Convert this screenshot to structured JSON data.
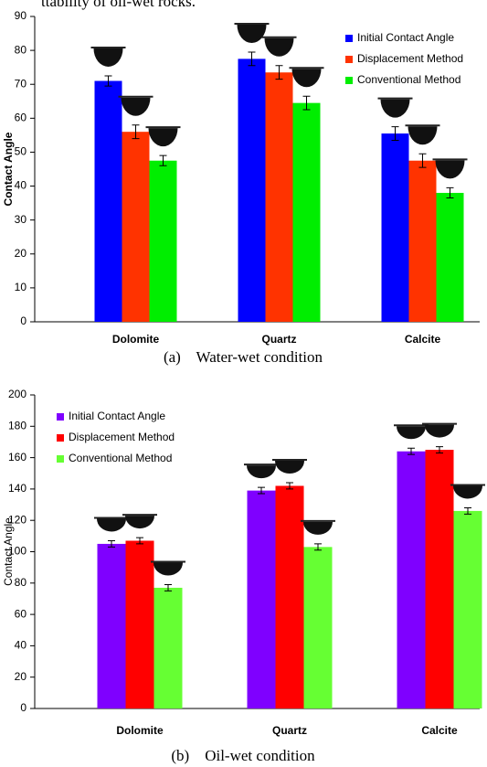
{
  "context_text": "ttability of oil-wet rocks.",
  "chart_data": [
    {
      "type": "bar",
      "caption": "(a)    Water-wet condition",
      "y_label": "Contact Angle",
      "categories": [
        "Dolomite",
        "Quartz",
        "Calcite"
      ],
      "series": [
        {
          "name": "Initial Contact Angle",
          "color": "#0000ff",
          "values": [
            71,
            77.5,
            55.5
          ],
          "errors": [
            1.5,
            2,
            2
          ]
        },
        {
          "name": "Displacement Method",
          "color": "#ff3300",
          "values": [
            56,
            73.5,
            47.5
          ],
          "errors": [
            2,
            2,
            2
          ]
        },
        {
          "name": "Conventional Method",
          "color": "#00ee00",
          "values": [
            47.5,
            64.5,
            38
          ],
          "errors": [
            1.5,
            2,
            1.5
          ]
        }
      ],
      "ylim": [
        0,
        90
      ],
      "yticks": [
        0,
        10,
        20,
        30,
        40,
        50,
        60,
        70,
        80,
        90
      ],
      "legend": "top-right"
    },
    {
      "type": "bar",
      "caption": "(b)    Oil-wet condition",
      "y_label": "Contact Angle",
      "categories": [
        "Dolomite",
        "Quartz",
        "Calcite"
      ],
      "series": [
        {
          "name": "Initial Contact Angle",
          "color": "#7f00ff",
          "values": [
            105,
            139,
            164
          ],
          "errors": [
            2,
            2,
            2
          ]
        },
        {
          "name": "Displacement Method",
          "color": "#ff0000",
          "values": [
            107,
            142,
            165
          ],
          "errors": [
            2,
            2,
            2
          ]
        },
        {
          "name": "Conventional Method",
          "color": "#66ff33",
          "values": [
            77,
            103,
            126
          ],
          "errors": [
            2,
            2,
            2
          ]
        }
      ],
      "ylim": [
        0,
        200
      ],
      "yticks": [
        0,
        20,
        40,
        60,
        80,
        100,
        120,
        140,
        160,
        180,
        200
      ],
      "legend": "top-left"
    }
  ]
}
